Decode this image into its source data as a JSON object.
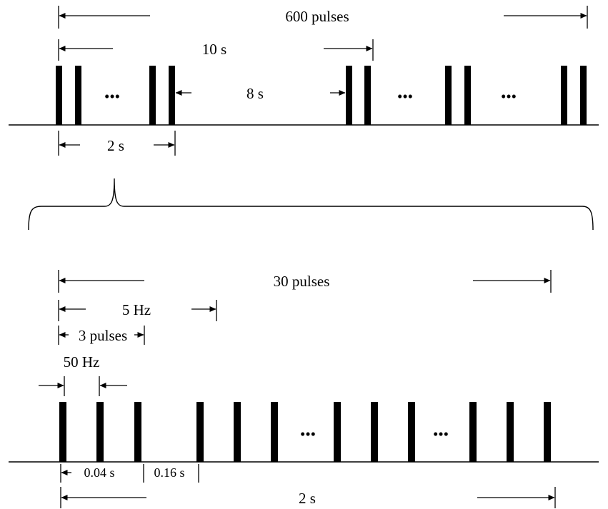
{
  "top": {
    "total_label": "600 pulses",
    "cycle_label": "10 s",
    "gap_label": "8 s",
    "train_label": "2 s",
    "ellipsis": "•••"
  },
  "bottom": {
    "total_label": "30 pulses",
    "burst_freq_label": "5 Hz",
    "burst_size_label": "3 pulses",
    "pulse_freq_label": "50 Hz",
    "pulse_interval_label": "0.04 s",
    "burst_gap_label": "0.16 s",
    "train_label": "2 s",
    "ellipsis": "•••"
  },
  "colors": {
    "ink": "#000000",
    "background": "#ffffff"
  }
}
